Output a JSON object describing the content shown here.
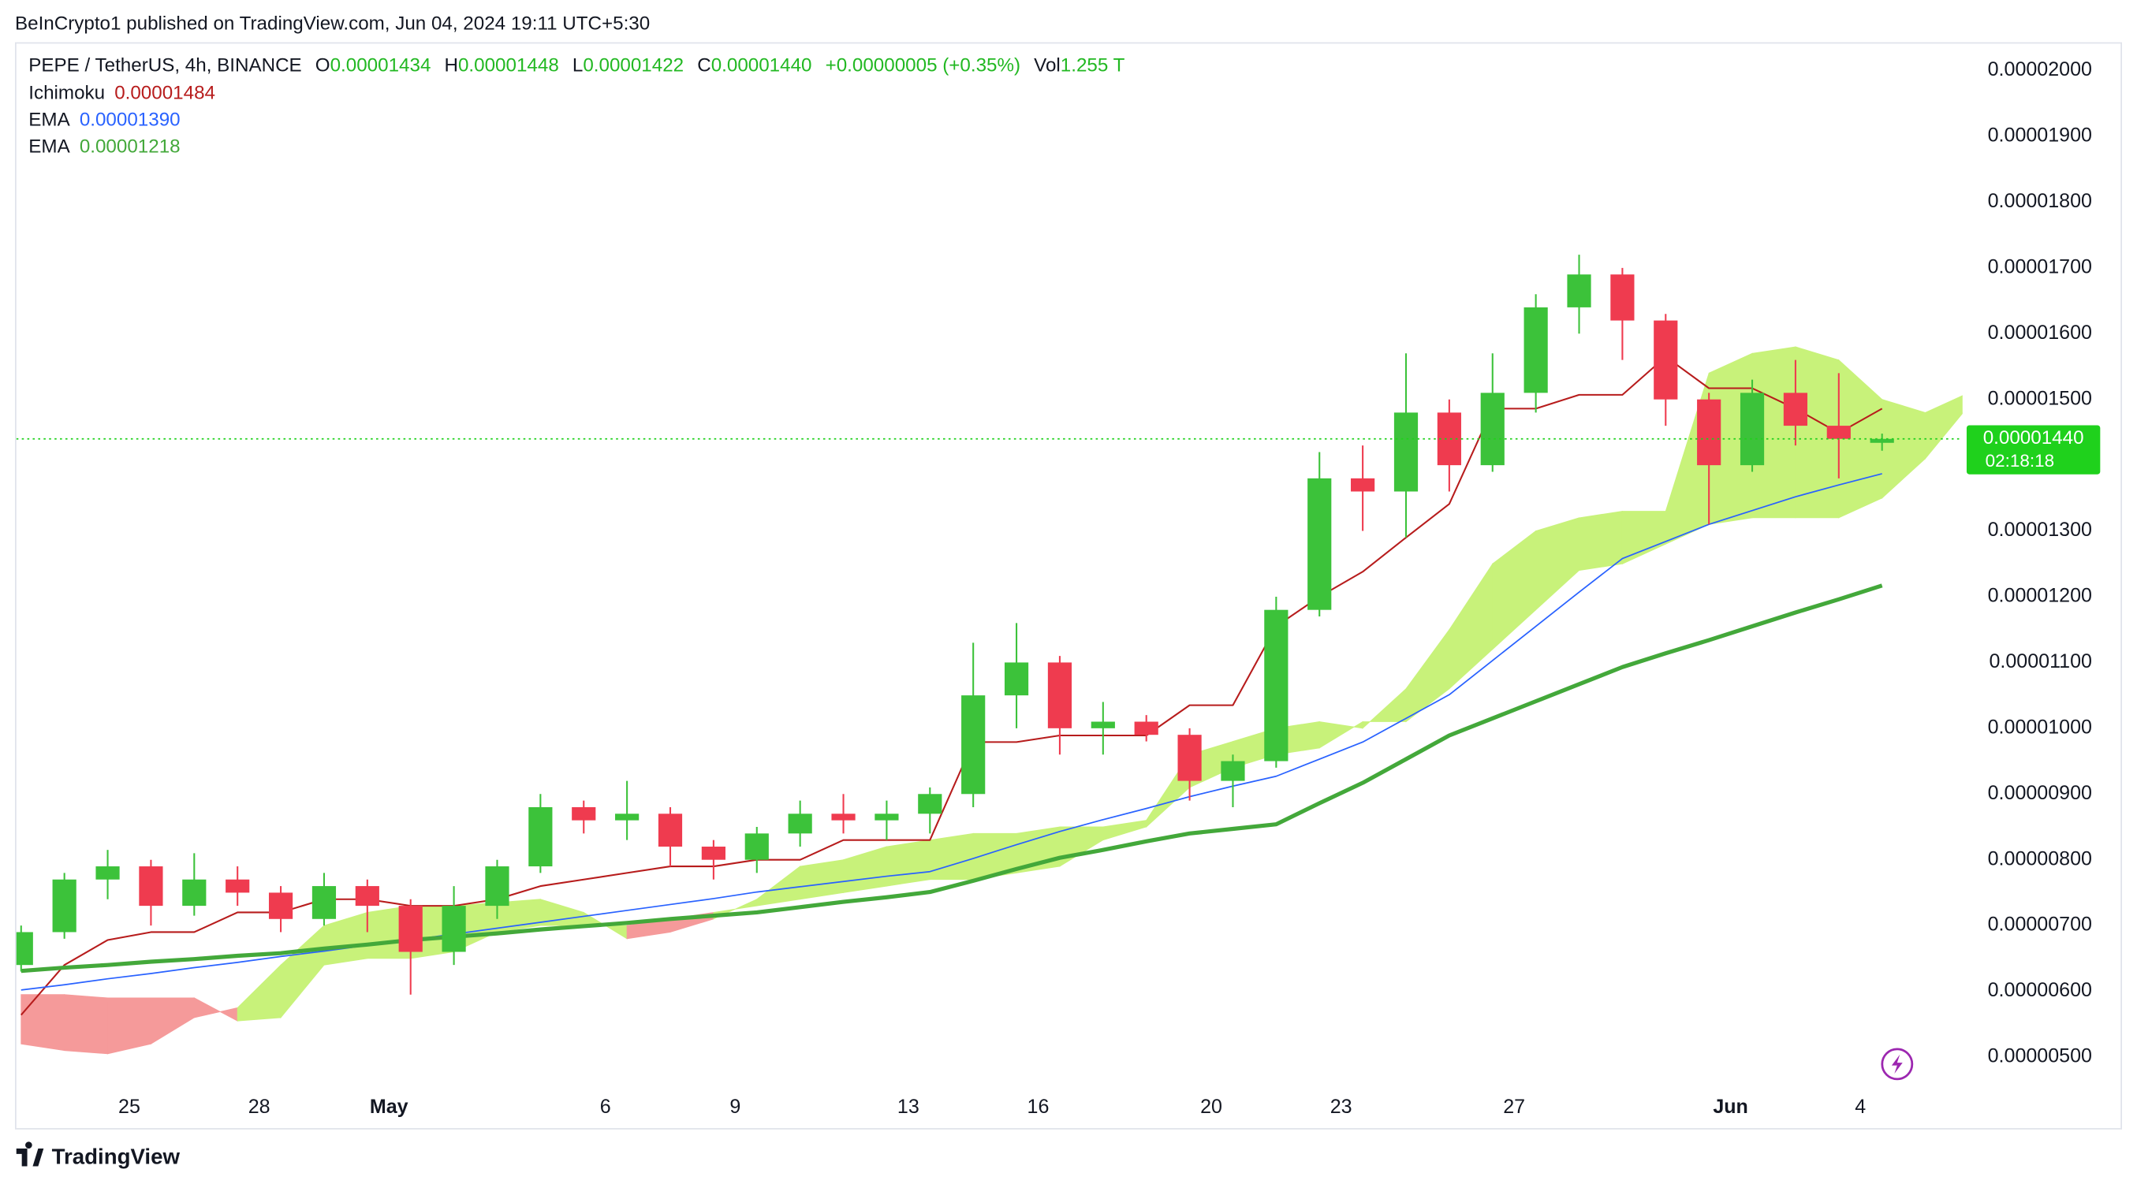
{
  "header": {
    "published": "BeInCrypto1 published on TradingView.com, Jun 04, 2024 19:11 UTC+5:30"
  },
  "footer": {
    "brand": "TradingView"
  },
  "legend": {
    "symbol": "PEPE / TetherUS, 4h, BINANCE",
    "ohlc": [
      {
        "key": "O",
        "value": "0.00001434"
      },
      {
        "key": "H",
        "value": "0.00001448"
      },
      {
        "key": "L",
        "value": "0.00001422"
      },
      {
        "key": "C",
        "value": "0.00001440"
      }
    ],
    "change": "+0.00000005 (+0.35%)",
    "vol_key": "Vol",
    "vol": "1.255 T"
  },
  "chart_data": {
    "type": "candlestick",
    "up_color": "#3cc23a",
    "down_color": "#ef3b4f",
    "xlim": [
      0.39,
      45.36
    ],
    "xticks": [
      {
        "value": 3,
        "label": "25"
      },
      {
        "value": 6,
        "label": "28"
      },
      {
        "value": 9,
        "label": "May"
      },
      {
        "value": 14,
        "label": "6"
      },
      {
        "value": 17,
        "label": "9"
      },
      {
        "value": 21,
        "label": "13"
      },
      {
        "value": 24,
        "label": "16"
      },
      {
        "value": 28,
        "label": "20"
      },
      {
        "value": 31,
        "label": "23"
      },
      {
        "value": 35,
        "label": "27"
      },
      {
        "value": 40,
        "label": "Jun"
      },
      {
        "value": 43,
        "label": "4"
      }
    ],
    "ylim": [
      4.5e-06,
      2.041e-05
    ],
    "yticks": [
      {
        "value": 5e-06,
        "label": "0.00000500"
      },
      {
        "value": 6e-06,
        "label": "0.00000600"
      },
      {
        "value": 7e-06,
        "label": "0.00000700"
      },
      {
        "value": 8e-06,
        "label": "0.00000800"
      },
      {
        "value": 9e-06,
        "label": "0.00000900"
      },
      {
        "value": 1e-05,
        "label": "0.00001000"
      },
      {
        "value": 1.1e-05,
        "label": "0.00001100"
      },
      {
        "value": 1.2e-05,
        "label": "0.00001200"
      },
      {
        "value": 1.3e-05,
        "label": "0.00001300"
      },
      {
        "value": 1.4e-05,
        "label": "0.00001400"
      },
      {
        "value": 1.5e-05,
        "label": "0.00001500"
      },
      {
        "value": 1.6e-05,
        "label": "0.00001600"
      },
      {
        "value": 1.7e-05,
        "label": "0.00001700"
      },
      {
        "value": 1.8e-05,
        "label": "0.00001800"
      },
      {
        "value": 1.9e-05,
        "label": "0.00001900"
      },
      {
        "value": 2e-05,
        "label": "0.00002000"
      }
    ],
    "x": [
      0.5,
      1.5,
      2.5,
      3.5,
      4.5,
      5.5,
      6.5,
      7.5,
      8.5,
      9.5,
      10.5,
      11.5,
      12.5,
      13.5,
      14.5,
      15.5,
      16.5,
      17.5,
      18.5,
      19.5,
      20.5,
      21.5,
      22.5,
      23.5,
      24.5,
      25.5,
      26.5,
      27.5,
      28.5,
      29.5,
      30.5,
      31.5,
      32.5,
      33.5,
      34.5,
      35.5,
      36.5,
      37.5,
      38.5,
      39.5,
      40.5,
      41.5,
      42.5,
      43.5
    ],
    "open": [
      6.4e-06,
      6.9e-06,
      7.7e-06,
      7.9e-06,
      7.3e-06,
      7.7e-06,
      7.5e-06,
      7.1e-06,
      7.6e-06,
      7.3e-06,
      6.6e-06,
      7.3e-06,
      7.9e-06,
      8.8e-06,
      8.6e-06,
      8.7e-06,
      8.2e-06,
      8e-06,
      8.4e-06,
      8.7e-06,
      8.6e-06,
      8.7e-06,
      9e-06,
      1.05e-05,
      1.1e-05,
      1e-05,
      1.01e-05,
      9.9e-06,
      9.2e-06,
      9.5e-06,
      1.18e-05,
      1.38e-05,
      1.36e-05,
      1.48e-05,
      1.4e-05,
      1.51e-05,
      1.64e-05,
      1.69e-05,
      1.62e-05,
      1.5e-05,
      1.4e-05,
      1.51e-05,
      1.46e-05,
      1.434e-05
    ],
    "high": [
      7e-06,
      7.8e-06,
      8.15e-06,
      8e-06,
      8.1e-06,
      7.9e-06,
      7.6e-06,
      7.8e-06,
      7.7e-06,
      7.4e-06,
      7.6e-06,
      8e-06,
      9e-06,
      8.9e-06,
      9.2e-06,
      8.8e-06,
      8.3e-06,
      8.5e-06,
      8.9e-06,
      9e-06,
      8.9e-06,
      9.1e-06,
      1.13e-05,
      1.16e-05,
      1.11e-05,
      1.04e-05,
      1.02e-05,
      1e-05,
      9.6e-06,
      1.2e-05,
      1.42e-05,
      1.43e-05,
      1.57e-05,
      1.5e-05,
      1.57e-05,
      1.66e-05,
      1.72e-05,
      1.7e-05,
      1.63e-05,
      1.51e-05,
      1.53e-05,
      1.56e-05,
      1.54e-05,
      1.448e-05
    ],
    "low": [
      6.3e-06,
      6.8e-06,
      7.4e-06,
      7e-06,
      7.15e-06,
      7.3e-06,
      6.9e-06,
      7e-06,
      6.9e-06,
      5.95e-06,
      6.4e-06,
      7.1e-06,
      7.8e-06,
      8.4e-06,
      8.3e-06,
      7.9e-06,
      7.7e-06,
      7.8e-06,
      8.2e-06,
      8.4e-06,
      8.3e-06,
      8.4e-06,
      8.8e-06,
      1e-05,
      9.6e-06,
      9.6e-06,
      9.8e-06,
      8.9e-06,
      8.8e-06,
      9.4e-06,
      1.17e-05,
      1.3e-05,
      1.29e-05,
      1.36e-05,
      1.39e-05,
      1.48e-05,
      1.6e-05,
      1.56e-05,
      1.46e-05,
      1.31e-05,
      1.39e-05,
      1.43e-05,
      1.38e-05,
      1.422e-05
    ],
    "close": [
      6.9e-06,
      7.7e-06,
      7.9e-06,
      7.3e-06,
      7.7e-06,
      7.5e-06,
      7.1e-06,
      7.6e-06,
      7.3e-06,
      6.6e-06,
      7.3e-06,
      7.9e-06,
      8.8e-06,
      8.6e-06,
      8.7e-06,
      8.2e-06,
      8e-06,
      8.4e-06,
      8.7e-06,
      8.6e-06,
      8.7e-06,
      9e-06,
      1.05e-05,
      1.1e-05,
      1e-05,
      1.01e-05,
      9.9e-06,
      9.2e-06,
      9.5e-06,
      1.18e-05,
      1.38e-05,
      1.36e-05,
      1.48e-05,
      1.4e-05,
      1.51e-05,
      1.64e-05,
      1.69e-05,
      1.62e-05,
      1.5e-05,
      1.4e-05,
      1.51e-05,
      1.46e-05,
      1.44e-05,
      1.44e-05
    ],
    "series": [
      {
        "name": "Ichimoku",
        "legend_value": "0.00001484",
        "color": "#b71c1c",
        "width": 1.2,
        "values": [
          5.64e-06,
          6.4e-06,
          6.78e-06,
          6.9e-06,
          6.9e-06,
          7.2e-06,
          7.2e-06,
          7.4e-06,
          7.4e-06,
          7.3e-06,
          7.3e-06,
          7.4e-06,
          7.6e-06,
          7.7e-06,
          7.8e-06,
          7.9e-06,
          7.9e-06,
          8e-06,
          8e-06,
          8.3e-06,
          8.3e-06,
          8.3e-06,
          9.79e-06,
          9.79e-06,
          9.89e-06,
          9.89e-06,
          9.89e-06,
          1.035e-05,
          1.035e-05,
          1.155e-05,
          1.2e-05,
          1.238e-05,
          1.29e-05,
          1.341e-05,
          1.486e-05,
          1.486e-05,
          1.507e-05,
          1.507e-05,
          1.565e-05,
          1.517e-05,
          1.517e-05,
          1.486e-05,
          1.449e-05,
          1.486e-05
        ]
      },
      {
        "name": "EMA",
        "legend_value": "0.00001390",
        "color": "#2962ff",
        "width": 1,
        "values": [
          6.02e-06,
          6.1e-06,
          6.19e-06,
          6.27e-06,
          6.36e-06,
          6.44e-06,
          6.53e-06,
          6.61e-06,
          6.7e-06,
          6.78e-06,
          6.87e-06,
          6.96e-06,
          7.05e-06,
          7.14e-06,
          7.23e-06,
          7.32e-06,
          7.41e-06,
          7.51e-06,
          7.59e-06,
          7.67e-06,
          7.75e-06,
          7.82e-06,
          8.02e-06,
          8.23e-06,
          8.43e-06,
          8.61e-06,
          8.78e-06,
          8.96e-06,
          9.12e-06,
          9.27e-06,
          9.53e-06,
          9.79e-06,
          1.015e-05,
          1.051e-05,
          1.103e-05,
          1.155e-05,
          1.207e-05,
          1.258e-05,
          1.284e-05,
          1.31e-05,
          1.331e-05,
          1.352e-05,
          1.37e-05,
          1.387e-05
        ]
      },
      {
        "name": "EMA",
        "legend_value": "0.00001218",
        "color": "#43a83a",
        "width": 3,
        "values": [
          6.31e-06,
          6.36e-06,
          6.4e-06,
          6.45e-06,
          6.49e-06,
          6.54e-06,
          6.58e-06,
          6.65e-06,
          6.71e-06,
          6.78e-06,
          6.83e-06,
          6.88e-06,
          6.94e-06,
          6.99e-06,
          7.04e-06,
          7.1e-06,
          7.15e-06,
          7.2e-06,
          7.28e-06,
          7.36e-06,
          7.43e-06,
          7.51e-06,
          7.68e-06,
          7.86e-06,
          8.03e-06,
          8.15e-06,
          8.28e-06,
          8.4e-06,
          8.47e-06,
          8.54e-06,
          8.86e-06,
          9.17e-06,
          9.53e-06,
          9.89e-06,
          1.015e-05,
          1.041e-05,
          1.067e-05,
          1.093e-05,
          1.114e-05,
          1.134e-05,
          1.155e-05,
          1.176e-05,
          1.196e-05,
          1.217e-05
        ]
      }
    ],
    "cloud": {
      "up_color": "#c8f27a",
      "down_color": "#f59a9a",
      "x": [
        0.5,
        1.5,
        2.5,
        3.5,
        4.5,
        5.5,
        6.5,
        7.5,
        8.5,
        9.5,
        10.5,
        11.5,
        12.5,
        13.5,
        14.5,
        15.5,
        16.5,
        17.5,
        18.5,
        19.5,
        20.5,
        21.5,
        22.5,
        23.5,
        24.5,
        25.5,
        26.5,
        27.5,
        28.5,
        29.5,
        30.5,
        31.5,
        32.5,
        33.5,
        34.5,
        35.5,
        36.5,
        37.5,
        38.5,
        39.5,
        40.5,
        41.5,
        42.5,
        43.5,
        44.5,
        45.5
      ],
      "span_a": [
        5.2e-06,
        5.1e-06,
        5.05e-06,
        5.2e-06,
        5.6e-06,
        5.75e-06,
        6.4e-06,
        7e-06,
        7.2e-06,
        7.3e-06,
        7.3e-06,
        7.35e-06,
        7.4e-06,
        7.2e-06,
        6.8e-06,
        6.9e-06,
        7.1e-06,
        7.4e-06,
        7.9e-06,
        8e-06,
        8.2e-06,
        8.3e-06,
        8.4e-06,
        8.4e-06,
        8.5e-06,
        8.5e-06,
        8.6e-06,
        9.6e-06,
        9.8e-06,
        1e-05,
        1.01e-05,
        1e-05,
        1.06e-05,
        1.15e-05,
        1.25e-05,
        1.3e-05,
        1.32e-05,
        1.33e-05,
        1.33e-05,
        1.54e-05,
        1.57e-05,
        1.58e-05,
        1.56e-05,
        1.5e-05,
        1.48e-05,
        1.51e-05
      ],
      "span_b": [
        5.95e-06,
        5.95e-06,
        5.9e-06,
        5.9e-06,
        5.9e-06,
        5.55e-06,
        5.6e-06,
        6.4e-06,
        6.5e-06,
        6.5e-06,
        6.6e-06,
        6.9e-06,
        7e-06,
        7e-06,
        7e-06,
        7.1e-06,
        7.2e-06,
        7.3e-06,
        7.4e-06,
        7.5e-06,
        7.6e-06,
        7.7e-06,
        7.7e-06,
        7.8e-06,
        7.9e-06,
        8.3e-06,
        8.5e-06,
        9.1e-06,
        9.4e-06,
        9.6e-06,
        9.7e-06,
        1.01e-05,
        1.01e-05,
        1.06e-05,
        1.12e-05,
        1.18e-05,
        1.24e-05,
        1.25e-05,
        1.28e-05,
        1.31e-05,
        1.32e-05,
        1.32e-05,
        1.32e-05,
        1.35e-05,
        1.41e-05,
        1.49e-05
      ]
    },
    "last_price": {
      "value": 1.44e-05,
      "label": "0.00001440",
      "color": "#1fd11c"
    },
    "countdown": "02:18:18"
  }
}
